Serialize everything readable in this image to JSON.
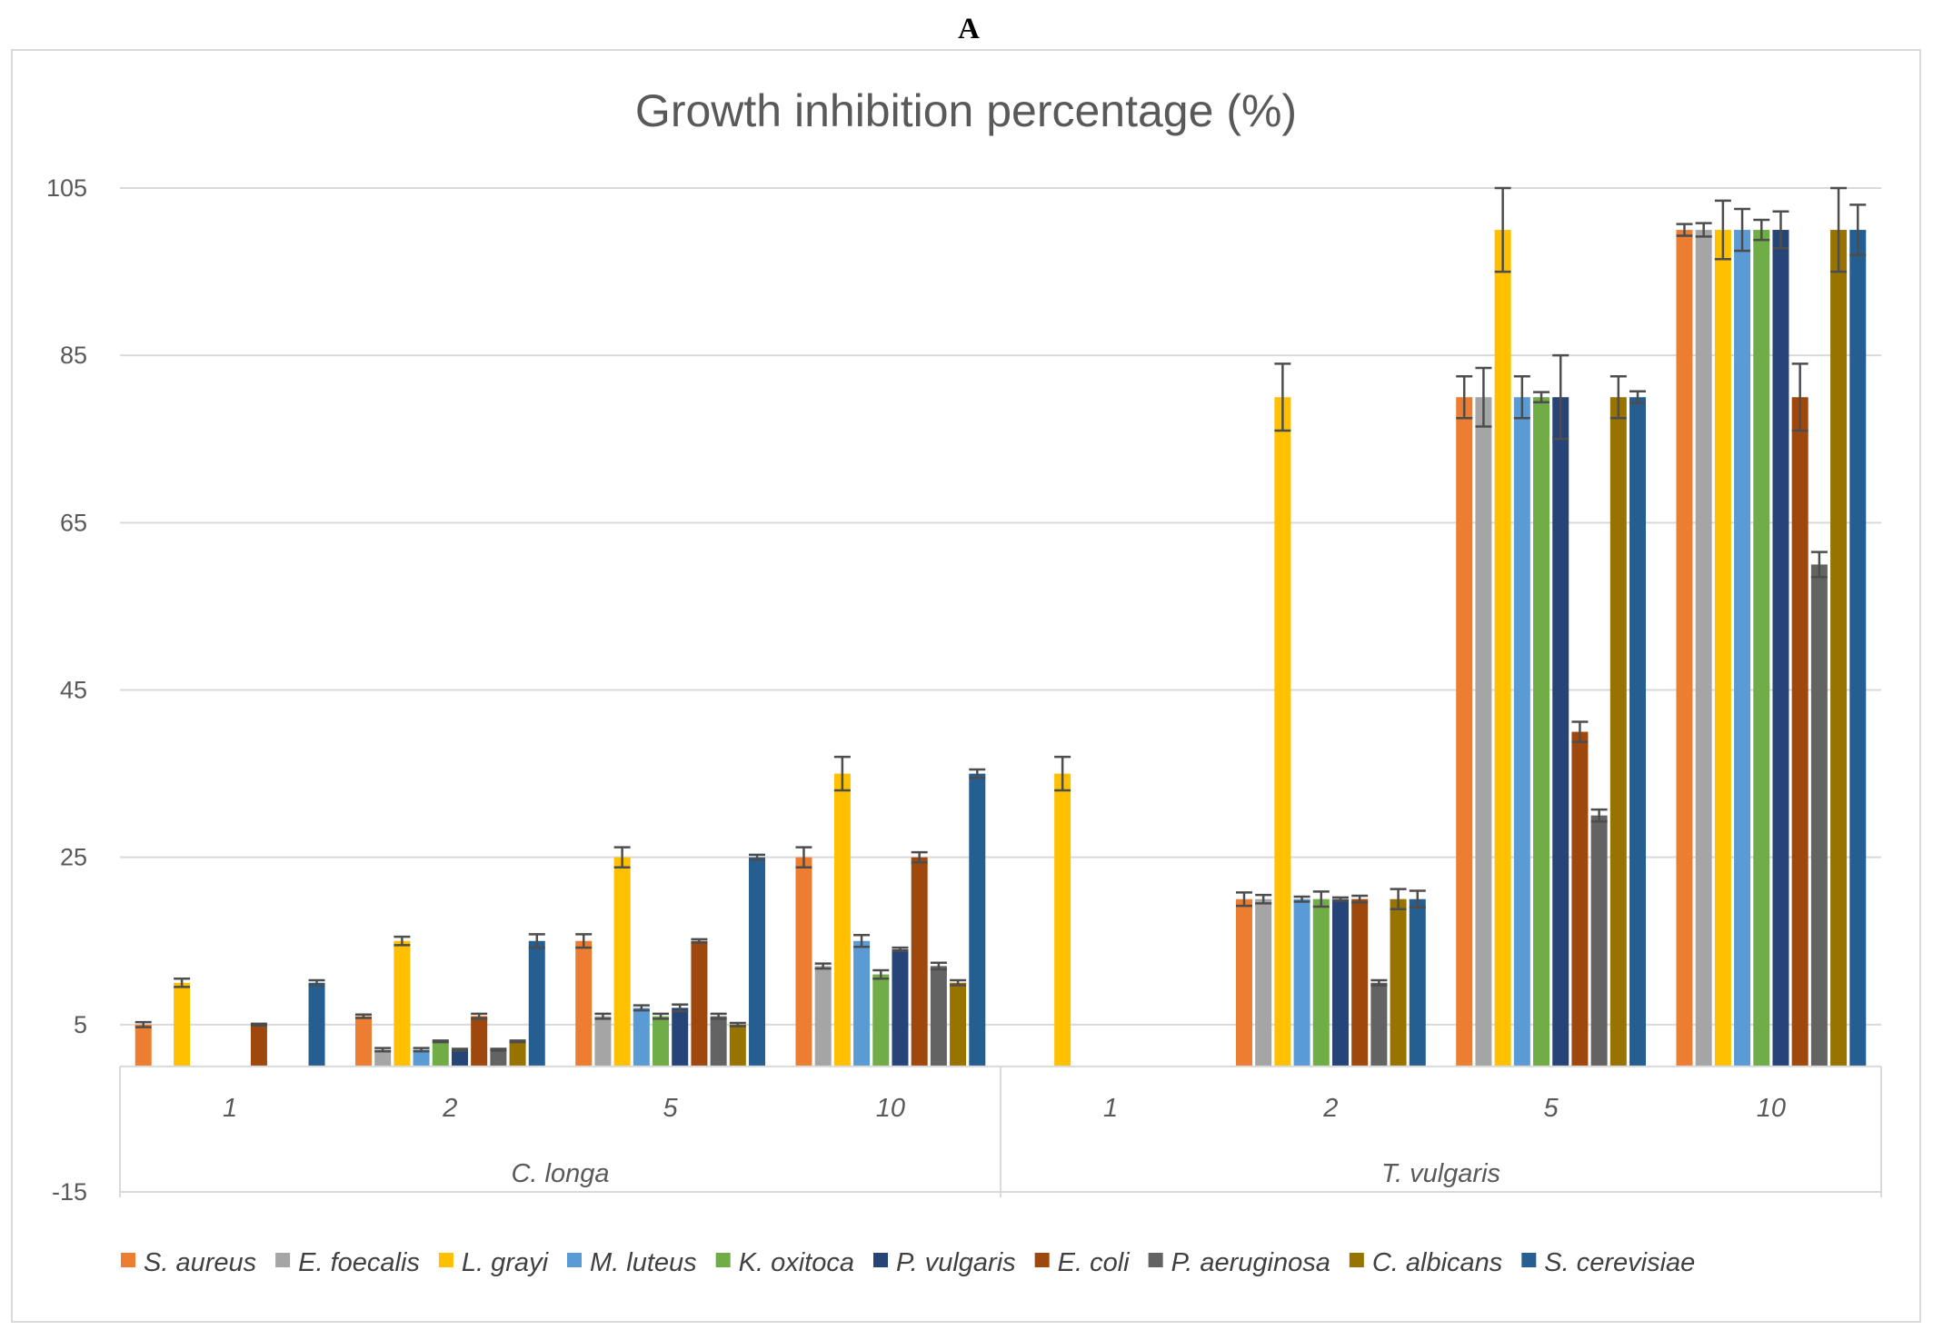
{
  "panel_label": "A",
  "chart_data": {
    "type": "bar",
    "title": "Growth inhibition percentage (%)",
    "xlabel": "",
    "ylabel": "",
    "ylim": [
      -15,
      105
    ],
    "yticks": [
      105,
      85,
      65,
      45,
      25,
      5,
      -15
    ],
    "baseline": 0,
    "grid": true,
    "legend_position": "bottom",
    "groups": [
      {
        "name": "C. longa",
        "categories": [
          "1",
          "2",
          "5",
          "10"
        ]
      },
      {
        "name": "T. vulgaris",
        "categories": [
          "1",
          "2",
          "5",
          "10"
        ]
      }
    ],
    "series": [
      {
        "name": "S. aureus",
        "color": "#ED7D31",
        "values": [
          5,
          6,
          15,
          25,
          0,
          20,
          80,
          100
        ],
        "errors": [
          0.3,
          0.2,
          0.8,
          1.2,
          0,
          0.8,
          2.5,
          0.7
        ]
      },
      {
        "name": "E. foecalis",
        "color": "#A5A5A5",
        "values": [
          0,
          2,
          6,
          12,
          0,
          20,
          80,
          100
        ],
        "errors": [
          0,
          0.2,
          0.3,
          0.3,
          0,
          0.5,
          3.5,
          0.8
        ]
      },
      {
        "name": "L. grayi",
        "color": "#FFC000",
        "values": [
          10,
          15,
          25,
          35,
          35,
          80,
          100,
          100
        ],
        "errors": [
          0.5,
          0.5,
          1.2,
          2,
          2,
          4,
          5,
          3.5
        ]
      },
      {
        "name": "M. luteus",
        "color": "#5B9BD5",
        "values": [
          0,
          2,
          7,
          15,
          0,
          20,
          80,
          100
        ],
        "errors": [
          0,
          0.2,
          0.3,
          0.7,
          0,
          0.3,
          2.5,
          2.5
        ]
      },
      {
        "name": "K. oxitoca",
        "color": "#70AD47",
        "values": [
          0,
          3,
          6,
          11,
          0,
          20,
          80,
          100
        ],
        "errors": [
          0,
          0.1,
          0.3,
          0.5,
          0,
          0.9,
          0.6,
          1.2
        ]
      },
      {
        "name": "P. vulgaris",
        "color": "#264478",
        "values": [
          0,
          2,
          7,
          14,
          0,
          20,
          80,
          100
        ],
        "errors": [
          0,
          0.1,
          0.4,
          0.2,
          0,
          0.2,
          5,
          2.2
        ]
      },
      {
        "name": "E. coli",
        "color": "#9E480E",
        "values": [
          5,
          6,
          15,
          25,
          0,
          20,
          40,
          80
        ],
        "errors": [
          0.1,
          0.3,
          0.2,
          0.6,
          0,
          0.4,
          1.2,
          4
        ]
      },
      {
        "name": "P. aeruginosa",
        "color": "#636363",
        "values": [
          0,
          2,
          6,
          12,
          0,
          10,
          30,
          60
        ],
        "errors": [
          0,
          0.1,
          0.3,
          0.4,
          0,
          0.3,
          0.7,
          1.5
        ]
      },
      {
        "name": "C. albicans",
        "color": "#997300",
        "values": [
          0,
          3,
          5,
          10,
          0,
          20,
          80,
          100
        ],
        "errors": [
          0,
          0.1,
          0.2,
          0.3,
          0,
          1.2,
          2.5,
          5
        ]
      },
      {
        "name": "S. cerevisiae",
        "color": "#255E91",
        "values": [
          10,
          15,
          25,
          35,
          0,
          20,
          80,
          100
        ],
        "errors": [
          0.3,
          0.8,
          0.3,
          0.5,
          0,
          1,
          0.7,
          3
        ]
      }
    ]
  }
}
